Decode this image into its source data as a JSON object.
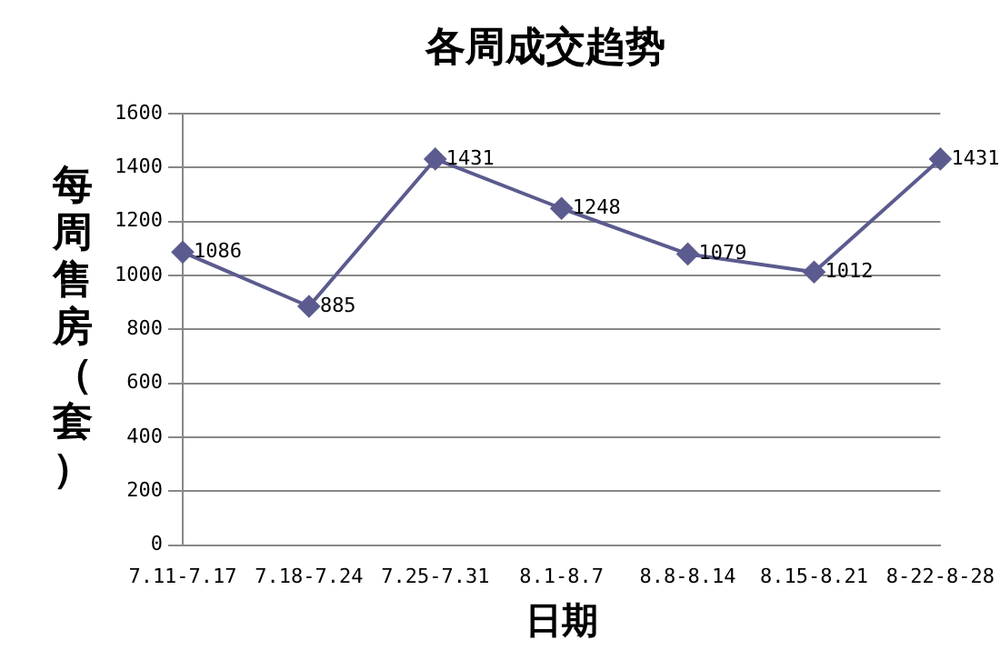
{
  "chart_data": {
    "type": "line",
    "title": "各周成交趋势",
    "xlabel": "日期",
    "ylabel": "每周售房（套）",
    "categories": [
      "7.11-7.17",
      "7.18-7.24",
      "7.25-7.31",
      "8.1-8.7",
      "8.8-8.14",
      "8.15-8.21",
      "8-22-8-28"
    ],
    "series": [
      {
        "color": "#5b5b8f",
        "values": [
          1086,
          885,
          1431,
          1248,
          1079,
          1012,
          1431
        ]
      }
    ],
    "ylim": [
      0,
      1600
    ],
    "yticks": [
      0,
      200,
      400,
      600,
      800,
      1000,
      1200,
      1400,
      1600
    ],
    "grid": "y",
    "legend": false,
    "marker": "diamond",
    "data_labels": true
  }
}
